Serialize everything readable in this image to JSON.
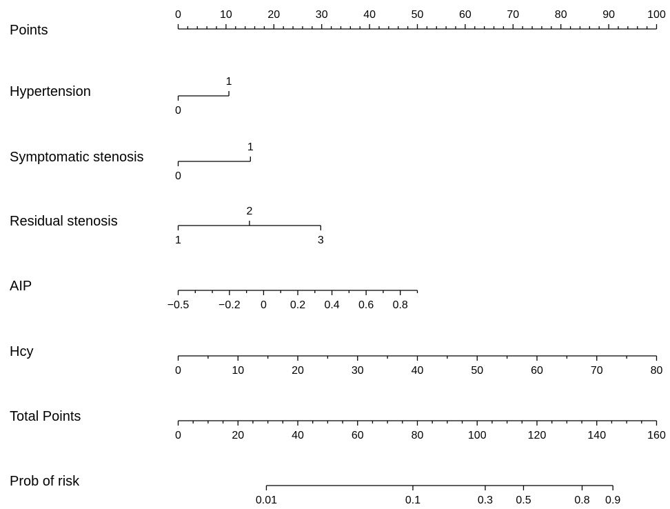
{
  "chart_data": {
    "type": "nomogram",
    "title": "",
    "rows": [
      {
        "label": "Points",
        "scale": [
          0,
          100
        ],
        "labels_position": "above",
        "major_ticks": [
          {
            "value": 0,
            "text": "0"
          },
          {
            "value": 10,
            "text": "10"
          },
          {
            "value": 20,
            "text": "20"
          },
          {
            "value": 30,
            "text": "30"
          },
          {
            "value": 40,
            "text": "40"
          },
          {
            "value": 50,
            "text": "50"
          },
          {
            "value": 60,
            "text": "60"
          },
          {
            "value": 70,
            "text": "70"
          },
          {
            "value": 80,
            "text": "80"
          },
          {
            "value": 90,
            "text": "90"
          },
          {
            "value": 100,
            "text": "100"
          }
        ],
        "minor_step": 2
      },
      {
        "label": "Hypertension",
        "type": "categorical",
        "levels": [
          {
            "text": "0",
            "points": 0,
            "side": "below"
          },
          {
            "text": "1",
            "points": 10.6,
            "side": "above"
          }
        ]
      },
      {
        "label": "Symptomatic stenosis",
        "type": "categorical",
        "levels": [
          {
            "text": "0",
            "points": 0,
            "side": "below"
          },
          {
            "text": "1",
            "points": 15.1,
            "side": "above"
          }
        ]
      },
      {
        "label": "Residual stenosis",
        "type": "categorical",
        "levels": [
          {
            "text": "1",
            "points": 0,
            "side": "below"
          },
          {
            "text": "2",
            "points": 14.9,
            "side": "above"
          },
          {
            "text": "3",
            "points": 29.8,
            "side": "below"
          }
        ]
      },
      {
        "label": "AIP",
        "type": "continuous",
        "range": [
          -0.5,
          0.9
        ],
        "points_range": [
          0,
          50
        ],
        "major_ticks": [
          {
            "value": -0.5,
            "text": "−0.5"
          },
          {
            "value": -0.2,
            "text": "−0.2"
          },
          {
            "value": 0,
            "text": "0"
          },
          {
            "value": 0.2,
            "text": "0.2"
          },
          {
            "value": 0.4,
            "text": "0.4"
          },
          {
            "value": 0.6,
            "text": "0.6"
          },
          {
            "value": 0.8,
            "text": "0.8"
          }
        ],
        "minor_step": 0.1
      },
      {
        "label": "Hcy",
        "type": "continuous",
        "range": [
          0,
          80
        ],
        "points_range": [
          0,
          100
        ],
        "major_ticks": [
          {
            "value": 0,
            "text": "0"
          },
          {
            "value": 10,
            "text": "10"
          },
          {
            "value": 20,
            "text": "20"
          },
          {
            "value": 30,
            "text": "30"
          },
          {
            "value": 40,
            "text": "40"
          },
          {
            "value": 50,
            "text": "50"
          },
          {
            "value": 60,
            "text": "60"
          },
          {
            "value": 70,
            "text": "70"
          },
          {
            "value": 80,
            "text": "80"
          }
        ],
        "minor_step": 5
      },
      {
        "label": "Total Points",
        "scale": [
          0,
          160
        ],
        "labels_position": "below",
        "major_ticks": [
          {
            "value": 0,
            "text": "0"
          },
          {
            "value": 20,
            "text": "20"
          },
          {
            "value": 40,
            "text": "40"
          },
          {
            "value": 60,
            "text": "60"
          },
          {
            "value": 80,
            "text": "80"
          },
          {
            "value": 100,
            "text": "100"
          },
          {
            "value": 120,
            "text": "120"
          },
          {
            "value": 140,
            "text": "140"
          },
          {
            "value": 160,
            "text": "160"
          }
        ],
        "minor_step": 5
      },
      {
        "label": "Prob of risk",
        "type": "probability",
        "total_points_scale": [
          0,
          160
        ],
        "ticks": [
          {
            "text": "0.01",
            "total_points": 29.5
          },
          {
            "text": "0.1",
            "total_points": 78.5
          },
          {
            "text": "0.3",
            "total_points": 102.7
          },
          {
            "text": "0.5",
            "total_points": 115.5
          },
          {
            "text": "0.8",
            "total_points": 135.1
          },
          {
            "text": "0.9",
            "total_points": 145.4
          }
        ]
      }
    ]
  }
}
